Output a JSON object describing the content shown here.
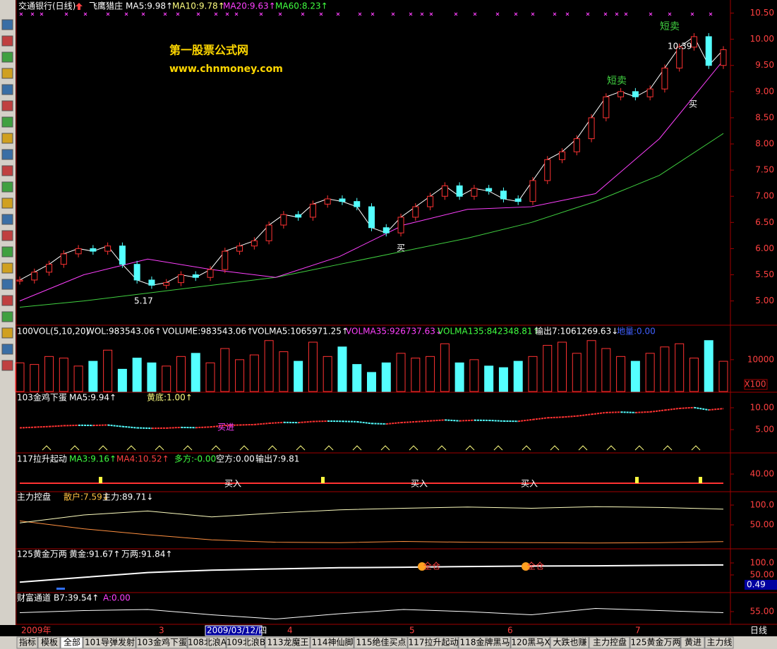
{
  "window": {
    "stock": "交通银行(日线)",
    "timeframe": "日线"
  },
  "main": {
    "indicator": "飞鹰猎庄",
    "legend": [
      {
        "text": "MA5:9.98↑",
        "color": "#ffffff"
      },
      {
        "text": "MA10:9.78↑",
        "color": "#ffff80"
      },
      {
        "text": "MA20:9.63↑",
        "color": "#ff40ff"
      },
      {
        "text": "MA60:8.23↑",
        "color": "#40ff40"
      }
    ],
    "ylim": [
      4.55,
      10.75
    ],
    "yticks": [
      {
        "value": 5,
        "label": "5.00"
      },
      {
        "value": 5.5,
        "label": "5.50"
      },
      {
        "value": 6,
        "label": "6.00"
      },
      {
        "value": 6.5,
        "label": "6.50"
      },
      {
        "value": 7,
        "label": "7.00"
      },
      {
        "value": 7.5,
        "label": "7.50"
      },
      {
        "value": 8,
        "label": "8.00"
      },
      {
        "value": 8.5,
        "label": "8.50"
      },
      {
        "value": 9,
        "label": "9.00"
      },
      {
        "value": 9.5,
        "label": "9.50"
      },
      {
        "value": 10,
        "label": "10.00"
      },
      {
        "value": 10.5,
        "label": "10.50"
      }
    ],
    "close": [
      5.4,
      5.55,
      5.7,
      5.9,
      6.0,
      5.95,
      6.05,
      5.7,
      5.4,
      5.3,
      5.35,
      5.5,
      5.45,
      5.6,
      5.95,
      6.05,
      6.15,
      6.45,
      6.65,
      6.6,
      6.85,
      6.95,
      6.9,
      6.8,
      6.4,
      6.3,
      6.6,
      6.8,
      7.0,
      7.2,
      7.0,
      7.15,
      7.1,
      6.95,
      6.9,
      7.3,
      7.7,
      7.85,
      8.1,
      8.5,
      8.9,
      9.0,
      8.9,
      9.05,
      9.45,
      9.85,
      10.05,
      9.5,
      9.8
    ],
    "ma20": [
      5.0,
      5.5,
      5.8,
      5.6,
      5.45,
      5.85,
      6.45,
      6.75,
      6.8,
      7.05,
      8.1,
      9.6
    ],
    "ma60": [
      4.88,
      5.0,
      5.15,
      5.3,
      5.45,
      5.7,
      5.95,
      6.2,
      6.5,
      6.9,
      7.4,
      8.2
    ],
    "watermark": [
      "第一股票公式网",
      "www.chnmoney.com"
    ],
    "annotations": [
      {
        "text": "短卖",
        "color": "#40d040"
      },
      {
        "text": "短卖",
        "color": "#40d040"
      },
      {
        "text": "10.39",
        "color": "#ffffff"
      },
      {
        "text": "买",
        "color": "#ffffff"
      },
      {
        "text": "买",
        "color": "#ffffff"
      },
      {
        "text": "5.17",
        "color": "#ffffff"
      }
    ]
  },
  "volume": {
    "legend": [
      {
        "text": "100VOL(5,10,20)",
        "color": "#ffffff"
      },
      {
        "text": "WOL:983543.06↑",
        "color": "#ffffff"
      },
      {
        "text": "VOLUME:983543.06↑",
        "color": "#ffffff"
      },
      {
        "text": "VOLMA5:1065971.25↑",
        "color": "#ffffff"
      },
      {
        "text": "VOLMA35:926737.63↓",
        "color": "#ff40ff"
      },
      {
        "text": "VOLMA135:842348.81↑",
        "color": "#40ff40"
      },
      {
        "text": "输出7:1061269.63↓",
        "color": "#ffffff"
      },
      {
        "text": "地量:0.00",
        "color": "#4060ff"
      }
    ],
    "ylim": [
      0,
      20600
    ],
    "yticks": [
      10000
    ],
    "unit": "X100",
    "values": [
      9000,
      8500,
      11000,
      10500,
      8000,
      9500,
      13000,
      7000,
      10500,
      9000,
      8000,
      11000,
      12000,
      9000,
      13500,
      10000,
      11500,
      16000,
      12500,
      9500,
      15500,
      11000,
      14000,
      8500,
      6000,
      9000,
      12000,
      10500,
      11000,
      15000,
      9000,
      10000,
      8000,
      7500,
      9500,
      11000,
      14500,
      15500,
      12000,
      16000,
      13500,
      11000,
      9500,
      12000,
      14000,
      15000,
      10500,
      16000,
      9500
    ]
  },
  "p103": {
    "legend": [
      {
        "text": "103金鸡下蛋",
        "color": "#ffffff"
      },
      {
        "text": "MA5:9.94↑",
        "color": "#ffffff"
      },
      {
        "text": "黄底:1.00↑",
        "color": "#ffff80"
      }
    ],
    "ylim": [
      -0.32,
      13.39
    ],
    "yticks": [
      {
        "value": 5,
        "label": "5.00"
      },
      {
        "value": 10,
        "label": "10.00"
      }
    ],
    "annotation": "买进"
  },
  "p117": {
    "legend": [
      {
        "text": "117拉升起动",
        "color": "#ffffff"
      },
      {
        "text": "MA3:9.16↑",
        "color": "#40ff40"
      },
      {
        "text": "MA4:10.52↑",
        "color": "#ff4040"
      },
      {
        "text": "多方:-0.00",
        "color": "#40ff40"
      },
      {
        "text": "空方:0.00",
        "color": "#ffffff"
      },
      {
        "text": "输出7:9.81",
        "color": "#ffffff"
      }
    ],
    "yticks": [
      {
        "value": 40,
        "label": "40.00"
      }
    ],
    "annotations": [
      "买入",
      "买入",
      "买入"
    ]
  },
  "pzl": {
    "legend": [
      {
        "text": "主力控盘",
        "color": "#ffffff"
      },
      {
        "text": "散户:7.59↓",
        "color": "#ffc040"
      },
      {
        "text": "主力:89.71↓",
        "color": "#ffffff"
      }
    ],
    "ylim": [
      -10.7,
      132.1
    ],
    "yticks": [
      {
        "value": 50,
        "label": "50.00"
      },
      {
        "value": 100,
        "label": "100.0"
      }
    ],
    "retail": [
      60,
      40,
      25,
      12,
      6,
      5,
      8,
      6,
      5,
      4,
      5,
      7.59
    ],
    "main": [
      55,
      75,
      85,
      70,
      80,
      88,
      92,
      95,
      92,
      96,
      94,
      89.71
    ]
  },
  "p125": {
    "legend": [
      {
        "text": "125黄金万两",
        "color": "#ffffff"
      },
      {
        "text": "黄金:91.67↑",
        "color": "#ffffff"
      },
      {
        "text": "万两:91.84↑",
        "color": "#ffffff"
      }
    ],
    "ylim": [
      -23.5,
      155.9
    ],
    "yticks": [
      {
        "value": 50,
        "label": "50.00"
      },
      {
        "value": 100,
        "label": "100.0"
      }
    ],
    "readout": "0.49",
    "gold": [
      20,
      40,
      60,
      70,
      75,
      80,
      82,
      85,
      87,
      88,
      90,
      91.67
    ],
    "annotations": [
      "全仓",
      "全仓"
    ]
  },
  "pcf": {
    "legend": [
      {
        "text": "财富通道",
        "color": "#ffffff"
      },
      {
        "text": "B7:39.54↑",
        "color": "#ffffff"
      },
      {
        "text": "A:0.00",
        "color": "#ff40ff"
      }
    ],
    "ylim": [
      43,
      72.3
    ],
    "yticks": [
      {
        "value": 55,
        "label": "55.00"
      }
    ],
    "values": [
      54,
      56,
      57,
      52,
      48,
      53,
      57,
      55,
      52,
      58,
      56,
      54
    ]
  },
  "dates": [
    "2009年",
    "3",
    "2009/03/12/四",
    "4",
    "5",
    "6",
    "7"
  ],
  "tabs": [
    "指标",
    "模板",
    "全部",
    "101导弹发射",
    "103金鸡下蛋",
    "108北浪A",
    "109北浪B",
    "113龙魔王",
    "114神仙脚",
    "115绝佳买点",
    "117拉升起动",
    "118金牌黑马",
    "120黑马X",
    "大跌也赚",
    "主力控盘",
    "125黄金万两",
    "黄进",
    "主力线"
  ]
}
